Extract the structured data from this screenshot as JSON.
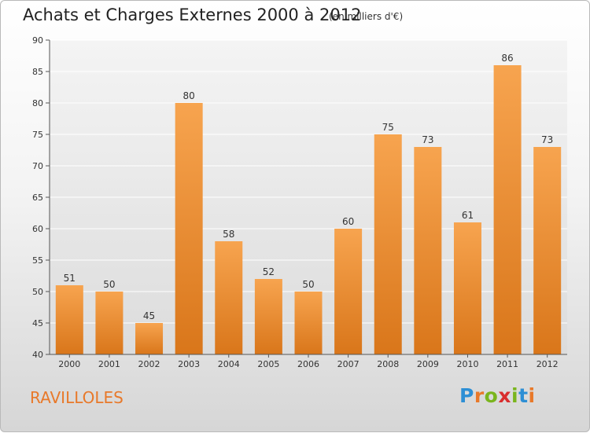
{
  "header": {
    "title": "Achats et Charges Externes 2000 à 2012",
    "subtitle": "(en milliers d'€)"
  },
  "footer": {
    "place": "RAVILLOLES",
    "brand": "Proxiti",
    "brand_colors": [
      "#2d8fd5",
      "#e8792a",
      "#7ab51d",
      "#d92e2e",
      "#7ab51d",
      "#2d8fd5",
      "#e8792a"
    ]
  },
  "colors": {
    "bar_top": "#f7a44f",
    "bar_bottom": "#d9761a",
    "axis": "#555555",
    "grid": "#ffffff"
  },
  "chart_data": {
    "type": "bar",
    "title": "Achats et Charges Externes 2000 à 2012",
    "subtitle": "(en milliers d'€)",
    "categories": [
      "2000",
      "2001",
      "2002",
      "2003",
      "2004",
      "2005",
      "2006",
      "2007",
      "2008",
      "2009",
      "2010",
      "2011",
      "2012"
    ],
    "values": [
      51,
      50,
      45,
      80,
      58,
      52,
      50,
      60,
      75,
      73,
      61,
      86,
      73
    ],
    "ylim": [
      40,
      90
    ],
    "yticks": [
      40,
      45,
      50,
      55,
      60,
      65,
      70,
      75,
      80,
      85,
      90
    ],
    "xlabel": "",
    "ylabel": "",
    "grid": true,
    "data_labels": true
  }
}
